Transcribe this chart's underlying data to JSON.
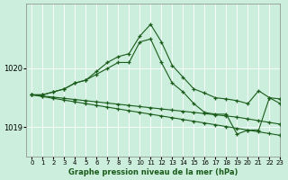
{
  "title": "Graphe pression niveau de la mer (hPa)",
  "background_color": "#cceedd",
  "line_color": "#1a5c1a",
  "xlim": [
    -0.5,
    23
  ],
  "ylim": [
    1018.5,
    1021.1
  ],
  "yticks": [
    1019,
    1020
  ],
  "xticks": [
    0,
    1,
    2,
    3,
    4,
    5,
    6,
    7,
    8,
    9,
    10,
    11,
    12,
    13,
    14,
    15,
    16,
    17,
    18,
    19,
    20,
    21,
    22,
    23
  ],
  "series": [
    [
      1019.55,
      1019.55,
      1019.6,
      1019.65,
      1019.75,
      1019.8,
      1019.95,
      1020.1,
      1020.2,
      1020.25,
      1020.55,
      1020.75,
      1020.45,
      1020.05,
      1019.85,
      1019.65,
      1019.58,
      1019.5,
      1019.48,
      1019.45,
      1019.4,
      1019.62,
      1019.5,
      1019.48
    ],
    [
      1019.55,
      1019.55,
      1019.6,
      1019.65,
      1019.75,
      1019.8,
      1019.9,
      1020.0,
      1020.1,
      1020.1,
      1020.45,
      1020.5,
      1020.1,
      1019.75,
      1019.6,
      1019.4,
      1019.25,
      1019.22,
      1019.22,
      1018.88,
      1018.95,
      1018.95,
      1019.5,
      1019.4
    ],
    [
      1019.55,
      1019.53,
      1019.51,
      1019.49,
      1019.47,
      1019.45,
      1019.43,
      1019.41,
      1019.39,
      1019.37,
      1019.35,
      1019.33,
      1019.31,
      1019.29,
      1019.27,
      1019.25,
      1019.23,
      1019.21,
      1019.19,
      1019.17,
      1019.14,
      1019.11,
      1019.08,
      1019.05
    ],
    [
      1019.55,
      1019.52,
      1019.49,
      1019.46,
      1019.43,
      1019.4,
      1019.37,
      1019.34,
      1019.31,
      1019.28,
      1019.25,
      1019.22,
      1019.19,
      1019.16,
      1019.13,
      1019.1,
      1019.07,
      1019.04,
      1019.01,
      1018.98,
      1018.95,
      1018.92,
      1018.89,
      1018.86
    ]
  ]
}
